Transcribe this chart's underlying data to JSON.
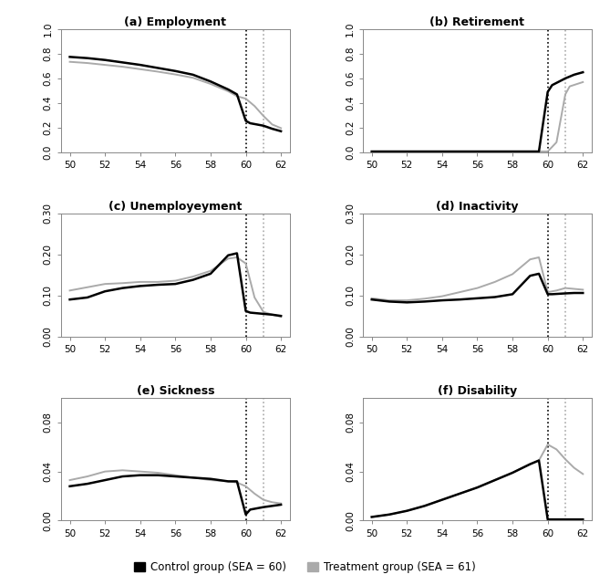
{
  "panels": [
    {
      "title": "(a) Employment",
      "ylim": [
        0.0,
        1.0
      ],
      "yticks": [
        0.0,
        0.2,
        0.4,
        0.6,
        0.8,
        1.0
      ],
      "ytick_labels": [
        "0.0",
        "0.2",
        "0.4",
        "0.6",
        "0.8",
        "1.0"
      ],
      "control_x": [
        50,
        51,
        52,
        53,
        54,
        55,
        56,
        57,
        58,
        59,
        59.5,
        60,
        60.25,
        61,
        61.5,
        62
      ],
      "control_y": [
        0.775,
        0.765,
        0.75,
        0.73,
        0.71,
        0.685,
        0.66,
        0.63,
        0.575,
        0.51,
        0.47,
        0.255,
        0.235,
        0.215,
        0.19,
        0.17
      ],
      "treat_x": [
        50,
        51,
        52,
        53,
        54,
        55,
        56,
        57,
        58,
        59,
        59.5,
        60,
        60.5,
        61,
        61.5,
        62
      ],
      "treat_y": [
        0.735,
        0.725,
        0.71,
        0.695,
        0.675,
        0.655,
        0.632,
        0.605,
        0.555,
        0.495,
        0.455,
        0.435,
        0.375,
        0.295,
        0.225,
        0.195
      ],
      "vline_black": 60,
      "vline_gray": 61
    },
    {
      "title": "(b) Retirement",
      "ylim": [
        0.0,
        1.0
      ],
      "yticks": [
        0.0,
        0.2,
        0.4,
        0.6,
        0.8,
        1.0
      ],
      "ytick_labels": [
        "0.0",
        "0.2",
        "0.4",
        "0.6",
        "0.8",
        "1.0"
      ],
      "control_x": [
        50,
        51,
        52,
        53,
        54,
        55,
        56,
        57,
        58,
        58.5,
        59,
        59.5,
        60,
        60.25,
        61,
        61.5,
        62
      ],
      "control_y": [
        0.005,
        0.005,
        0.005,
        0.005,
        0.005,
        0.005,
        0.005,
        0.005,
        0.005,
        0.005,
        0.005,
        0.005,
        0.49,
        0.545,
        0.6,
        0.63,
        0.65
      ],
      "treat_x": [
        50,
        51,
        52,
        53,
        54,
        55,
        56,
        57,
        58,
        58.5,
        59,
        59.5,
        60,
        60.5,
        61,
        61.25,
        62
      ],
      "treat_y": [
        0.005,
        0.005,
        0.005,
        0.005,
        0.005,
        0.005,
        0.005,
        0.005,
        0.005,
        0.005,
        0.005,
        0.005,
        0.005,
        0.08,
        0.47,
        0.535,
        0.57
      ],
      "vline_black": 60,
      "vline_gray": 61
    },
    {
      "title": "(c) Unemployeyment",
      "ylim": [
        0.0,
        0.3
      ],
      "yticks": [
        0.0,
        0.1,
        0.2,
        0.3
      ],
      "ytick_labels": [
        "0.00",
        "0.10",
        "0.20",
        "0.30"
      ],
      "control_x": [
        50,
        51,
        52,
        53,
        54,
        55,
        56,
        57,
        58,
        59,
        59.5,
        60,
        60.25,
        61,
        61.5,
        62
      ],
      "control_y": [
        0.09,
        0.095,
        0.11,
        0.118,
        0.123,
        0.126,
        0.128,
        0.138,
        0.153,
        0.198,
        0.203,
        0.062,
        0.058,
        0.055,
        0.053,
        0.05
      ],
      "treat_x": [
        50,
        51,
        52,
        53,
        54,
        55,
        56,
        57,
        58,
        59,
        59.5,
        60,
        60.5,
        61,
        61.5,
        62
      ],
      "treat_y": [
        0.112,
        0.12,
        0.128,
        0.13,
        0.133,
        0.133,
        0.136,
        0.146,
        0.16,
        0.19,
        0.193,
        0.178,
        0.095,
        0.06,
        0.053,
        0.048
      ],
      "vline_black": 60,
      "vline_gray": 61
    },
    {
      "title": "(d) Inactivity",
      "ylim": [
        0.0,
        0.3
      ],
      "yticks": [
        0.0,
        0.1,
        0.2,
        0.3
      ],
      "ytick_labels": [
        "0.00",
        "0.10",
        "0.20",
        "0.30"
      ],
      "control_x": [
        50,
        51,
        52,
        53,
        54,
        55,
        56,
        57,
        58,
        59,
        59.5,
        60,
        60.25,
        61,
        61.5,
        62
      ],
      "control_y": [
        0.09,
        0.085,
        0.083,
        0.085,
        0.088,
        0.09,
        0.093,
        0.096,
        0.103,
        0.148,
        0.153,
        0.103,
        0.103,
        0.105,
        0.106,
        0.106
      ],
      "treat_x": [
        50,
        51,
        52,
        53,
        54,
        55,
        56,
        57,
        58,
        59,
        59.5,
        60,
        60.5,
        61,
        61.5,
        62
      ],
      "treat_y": [
        0.093,
        0.088,
        0.088,
        0.092,
        0.098,
        0.108,
        0.118,
        0.133,
        0.152,
        0.188,
        0.193,
        0.108,
        0.112,
        0.118,
        0.116,
        0.114
      ],
      "vline_black": 60,
      "vline_gray": 61
    },
    {
      "title": "(e) Sickness",
      "ylim": [
        0.0,
        0.1
      ],
      "yticks": [
        0.0,
        0.04,
        0.08
      ],
      "ytick_labels": [
        "0.00",
        "0.04",
        "0.08"
      ],
      "control_x": [
        50,
        51,
        52,
        53,
        54,
        55,
        56,
        57,
        58,
        59,
        59.5,
        60,
        60.25,
        61,
        61.5,
        62
      ],
      "control_y": [
        0.028,
        0.03,
        0.033,
        0.036,
        0.037,
        0.037,
        0.036,
        0.035,
        0.034,
        0.032,
        0.032,
        0.005,
        0.009,
        0.011,
        0.012,
        0.013
      ],
      "treat_x": [
        50,
        51,
        52,
        53,
        54,
        55,
        56,
        57,
        58,
        59,
        59.5,
        60,
        60.5,
        61,
        61.5,
        62
      ],
      "treat_y": [
        0.033,
        0.036,
        0.04,
        0.041,
        0.04,
        0.039,
        0.037,
        0.035,
        0.033,
        0.032,
        0.031,
        0.028,
        0.022,
        0.017,
        0.015,
        0.014
      ],
      "vline_black": 60,
      "vline_gray": 61
    },
    {
      "title": "(f) Disability",
      "ylim": [
        0.0,
        0.1
      ],
      "yticks": [
        0.0,
        0.04,
        0.08
      ],
      "ytick_labels": [
        "0.00",
        "0.04",
        "0.08"
      ],
      "control_x": [
        50,
        51,
        52,
        53,
        54,
        55,
        56,
        57,
        58,
        59,
        59.5,
        60,
        60.25,
        61,
        61.5,
        62
      ],
      "control_y": [
        0.003,
        0.005,
        0.008,
        0.012,
        0.017,
        0.022,
        0.027,
        0.033,
        0.039,
        0.046,
        0.049,
        0.001,
        0.001,
        0.001,
        0.001,
        0.001
      ],
      "treat_x": [
        50,
        51,
        52,
        53,
        54,
        55,
        56,
        57,
        58,
        59,
        59.5,
        60,
        60.5,
        61,
        61.5,
        62
      ],
      "treat_y": [
        0.003,
        0.005,
        0.008,
        0.012,
        0.017,
        0.022,
        0.027,
        0.033,
        0.039,
        0.046,
        0.049,
        0.062,
        0.058,
        0.05,
        0.043,
        0.038
      ],
      "vline_black": 60,
      "vline_gray": 61
    }
  ],
  "control_color": "#000000",
  "treat_color": "#aaaaaa",
  "control_lw": 1.8,
  "treat_lw": 1.4,
  "xticks": [
    50,
    52,
    54,
    56,
    58,
    60,
    62
  ],
  "legend_control": "Control group (SEA = 60)",
  "legend_treat": "Treatment group (SEA = 61)",
  "background_color": "#ffffff"
}
